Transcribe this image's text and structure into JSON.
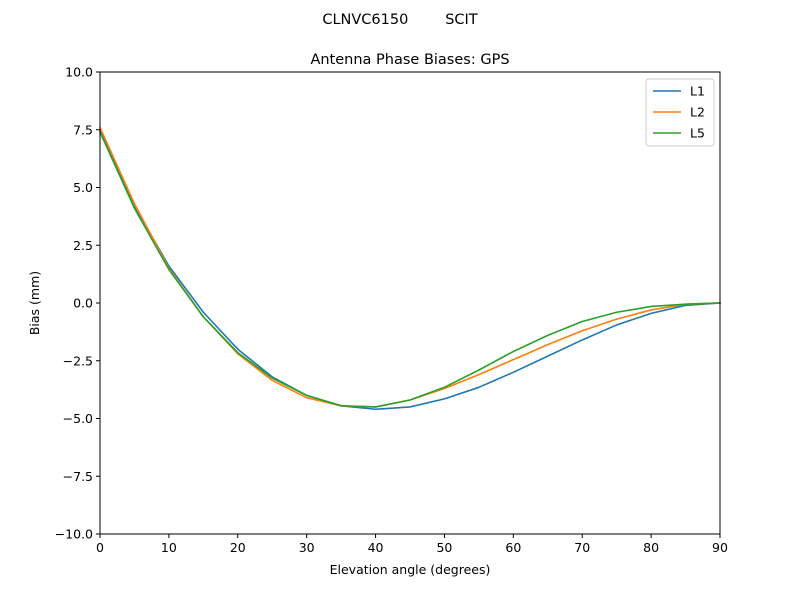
{
  "figure": {
    "suptitle": "CLNVC6150        SCIT"
  },
  "chart_data": {
    "type": "line",
    "title": "Antenna Phase Biases: GPS",
    "xlabel": "Elevation angle (degrees)",
    "ylabel": "Bias (mm)",
    "xlim": [
      0,
      90
    ],
    "ylim": [
      -10,
      10
    ],
    "xticks": [
      0,
      10,
      20,
      30,
      40,
      50,
      60,
      70,
      80,
      90
    ],
    "yticks": [
      -10.0,
      -7.5,
      -5.0,
      -2.5,
      0.0,
      2.5,
      5.0,
      7.5,
      10.0
    ],
    "xtick_labels": [
      "0",
      "10",
      "20",
      "30",
      "40",
      "50",
      "60",
      "70",
      "80",
      "90"
    ],
    "ytick_labels": [
      "−10.0",
      "−7.5",
      "−5.0",
      "−2.5",
      "0.0",
      "2.5",
      "5.0",
      "7.5",
      "10.0"
    ],
    "grid": false,
    "legend_position": "top-right",
    "x": [
      0,
      5,
      10,
      15,
      20,
      25,
      30,
      35,
      40,
      45,
      50,
      55,
      60,
      65,
      70,
      75,
      80,
      85,
      90
    ],
    "series": [
      {
        "name": "L1",
        "color": "#1f77b4",
        "values": [
          7.5,
          4.2,
          1.6,
          -0.4,
          -2.0,
          -3.2,
          -4.0,
          -4.45,
          -4.6,
          -4.5,
          -4.15,
          -3.65,
          -3.0,
          -2.3,
          -1.6,
          -0.95,
          -0.45,
          -0.1,
          0.0
        ]
      },
      {
        "name": "L2",
        "color": "#ff7f0e",
        "values": [
          7.6,
          4.3,
          1.5,
          -0.6,
          -2.2,
          -3.35,
          -4.1,
          -4.45,
          -4.5,
          -4.2,
          -3.7,
          -3.1,
          -2.45,
          -1.8,
          -1.2,
          -0.7,
          -0.3,
          -0.05,
          0.0
        ]
      },
      {
        "name": "L5",
        "color": "#2ca02c",
        "values": [
          7.4,
          4.1,
          1.45,
          -0.6,
          -2.15,
          -3.25,
          -4.0,
          -4.45,
          -4.5,
          -4.2,
          -3.65,
          -2.9,
          -2.1,
          -1.4,
          -0.8,
          -0.4,
          -0.15,
          -0.05,
          0.0
        ]
      }
    ]
  }
}
